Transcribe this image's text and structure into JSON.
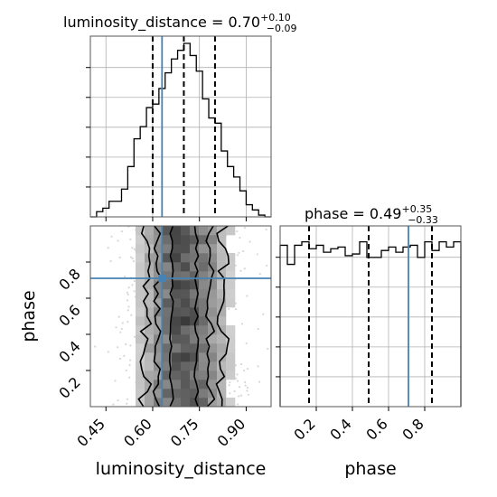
{
  "chart_data": {
    "type": "corner",
    "parameters": [
      "luminosity_distance",
      "phase"
    ],
    "truths": {
      "luminosity_distance": 0.63,
      "phase": 0.71
    },
    "panels": [
      {
        "id": "hist-luminosity-distance",
        "type": "histogram",
        "title_prefix": "luminosity_distance = 0.70",
        "title_sup": "+0.10",
        "title_sub": "−0.09",
        "xlim": [
          0.4,
          0.98
        ],
        "quantiles": [
          0.6,
          0.7,
          0.8
        ],
        "truth": 0.63,
        "bins": [
          {
            "x0": 0.4,
            "x1": 0.42,
            "h": 0.0
          },
          {
            "x0": 0.42,
            "x1": 0.44,
            "h": 0.03
          },
          {
            "x0": 0.44,
            "x1": 0.46,
            "h": 0.05
          },
          {
            "x0": 0.46,
            "x1": 0.48,
            "h": 0.09
          },
          {
            "x0": 0.48,
            "x1": 0.5,
            "h": 0.09
          },
          {
            "x0": 0.5,
            "x1": 0.52,
            "h": 0.16
          },
          {
            "x0": 0.52,
            "x1": 0.54,
            "h": 0.29
          },
          {
            "x0": 0.54,
            "x1": 0.56,
            "h": 0.45
          },
          {
            "x0": 0.56,
            "x1": 0.58,
            "h": 0.52
          },
          {
            "x0": 0.58,
            "x1": 0.6,
            "h": 0.63
          },
          {
            "x0": 0.6,
            "x1": 0.62,
            "h": 0.65
          },
          {
            "x0": 0.62,
            "x1": 0.64,
            "h": 0.74
          },
          {
            "x0": 0.64,
            "x1": 0.66,
            "h": 0.83
          },
          {
            "x0": 0.66,
            "x1": 0.68,
            "h": 0.91
          },
          {
            "x0": 0.68,
            "x1": 0.7,
            "h": 0.96
          },
          {
            "x0": 0.7,
            "x1": 0.72,
            "h": 1.0
          },
          {
            "x0": 0.72,
            "x1": 0.74,
            "h": 0.93
          },
          {
            "x0": 0.74,
            "x1": 0.76,
            "h": 0.84
          },
          {
            "x0": 0.76,
            "x1": 0.78,
            "h": 0.68
          },
          {
            "x0": 0.78,
            "x1": 0.8,
            "h": 0.57
          },
          {
            "x0": 0.8,
            "x1": 0.82,
            "h": 0.54
          },
          {
            "x0": 0.82,
            "x1": 0.84,
            "h": 0.38
          },
          {
            "x0": 0.84,
            "x1": 0.86,
            "h": 0.29
          },
          {
            "x0": 0.86,
            "x1": 0.88,
            "h": 0.23
          },
          {
            "x0": 0.88,
            "x1": 0.9,
            "h": 0.15
          },
          {
            "x0": 0.9,
            "x1": 0.92,
            "h": 0.07
          },
          {
            "x0": 0.92,
            "x1": 0.94,
            "h": 0.04
          },
          {
            "x0": 0.94,
            "x1": 0.96,
            "h": 0.01
          },
          {
            "x0": 0.96,
            "x1": 0.98,
            "h": 0.0
          }
        ]
      },
      {
        "id": "hist-phase",
        "type": "histogram",
        "title_prefix": "phase = 0.49",
        "title_sup": "+0.35",
        "title_sub": "−0.33",
        "xlim": [
          0.0,
          1.0
        ],
        "quantiles": [
          0.16,
          0.49,
          0.84
        ],
        "truth": 0.71,
        "bins": [
          {
            "x0": 0.0,
            "x1": 0.04,
            "h": 0.93
          },
          {
            "x0": 0.04,
            "x1": 0.08,
            "h": 0.82
          },
          {
            "x0": 0.08,
            "x1": 0.12,
            "h": 0.93
          },
          {
            "x0": 0.12,
            "x1": 0.16,
            "h": 0.95
          },
          {
            "x0": 0.16,
            "x1": 0.2,
            "h": 0.91
          },
          {
            "x0": 0.2,
            "x1": 0.24,
            "h": 0.93
          },
          {
            "x0": 0.24,
            "x1": 0.28,
            "h": 0.89
          },
          {
            "x0": 0.28,
            "x1": 0.32,
            "h": 0.91
          },
          {
            "x0": 0.32,
            "x1": 0.36,
            "h": 0.92
          },
          {
            "x0": 0.36,
            "x1": 0.4,
            "h": 0.87
          },
          {
            "x0": 0.4,
            "x1": 0.44,
            "h": 0.88
          },
          {
            "x0": 0.44,
            "x1": 0.48,
            "h": 0.95
          },
          {
            "x0": 0.48,
            "x1": 0.52,
            "h": 0.86
          },
          {
            "x0": 0.52,
            "x1": 0.56,
            "h": 0.86
          },
          {
            "x0": 0.56,
            "x1": 0.6,
            "h": 0.9
          },
          {
            "x0": 0.6,
            "x1": 0.64,
            "h": 0.92
          },
          {
            "x0": 0.64,
            "x1": 0.68,
            "h": 0.89
          },
          {
            "x0": 0.68,
            "x1": 0.72,
            "h": 0.92
          },
          {
            "x0": 0.72,
            "x1": 0.76,
            "h": 0.93
          },
          {
            "x0": 0.76,
            "x1": 0.8,
            "h": 0.86
          },
          {
            "x0": 0.8,
            "x1": 0.84,
            "h": 0.95
          },
          {
            "x0": 0.84,
            "x1": 0.88,
            "h": 0.9
          },
          {
            "x0": 0.88,
            "x1": 0.92,
            "h": 0.95
          },
          {
            "x0": 0.92,
            "x1": 0.96,
            "h": 0.92
          },
          {
            "x0": 0.96,
            "x1": 1.0,
            "h": 0.95
          }
        ]
      },
      {
        "id": "joint-luminosity-distance-phase",
        "type": "2d-density",
        "xlim": [
          0.4,
          0.98
        ],
        "ylim": [
          0.0,
          1.0
        ],
        "ellipse_center": {
          "x": 0.7,
          "y": 0.5
        },
        "ellipse_width_sigma": [
          0.04,
          0.085,
          0.125
        ],
        "truth": {
          "x": 0.63,
          "y": 0.71
        }
      }
    ],
    "x_ticks": {
      "luminosity_distance": [
        {
          "value": 0.45,
          "label": "0.45"
        },
        {
          "value": 0.6,
          "label": "0.60"
        },
        {
          "value": 0.75,
          "label": "0.75"
        },
        {
          "value": 0.9,
          "label": "0.90"
        }
      ],
      "phase": [
        {
          "value": 0.2,
          "label": "0.2"
        },
        {
          "value": 0.4,
          "label": "0.4"
        },
        {
          "value": 0.6,
          "label": "0.6"
        },
        {
          "value": 0.8,
          "label": "0.8"
        }
      ]
    },
    "y_ticks": {
      "phase": [
        {
          "value": 0.2,
          "label": "0.2"
        },
        {
          "value": 0.4,
          "label": "0.4"
        },
        {
          "value": 0.6,
          "label": "0.6"
        },
        {
          "value": 0.8,
          "label": "0.8"
        }
      ]
    },
    "xlabels": [
      "luminosity_distance",
      "phase"
    ],
    "ylabel": "phase",
    "grid": true,
    "colors": {
      "hist": "#000000",
      "truth": "#4682b4",
      "grid": "#b0b0b0",
      "samples": "#bdbdbd",
      "contour": "#000000"
    }
  }
}
